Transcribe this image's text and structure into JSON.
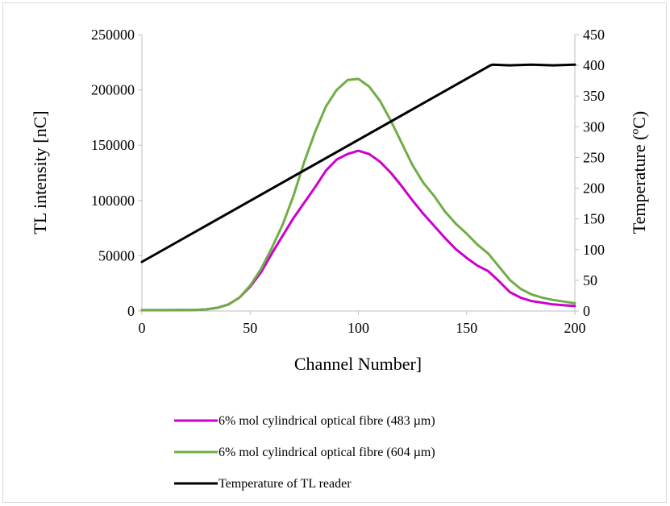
{
  "chart_data": {
    "type": "line",
    "title": "",
    "xlabel": "Channel Number]",
    "ylabel_left": "TL intensity [nC]",
    "ylabel_right": "Temperature  (ºC)",
    "xlim": [
      0,
      200
    ],
    "ylim_left": [
      0,
      250000
    ],
    "ylim_right": [
      0,
      450
    ],
    "x_ticks": [
      "0",
      "50",
      "100",
      "150",
      "200"
    ],
    "y_left_ticks": [
      "0",
      "50000",
      "100000",
      "150000",
      "200000",
      "250000"
    ],
    "y_right_ticks": [
      "0",
      "50",
      "100",
      "150",
      "200",
      "250",
      "300",
      "350",
      "400",
      "450"
    ],
    "grid": false,
    "legend_position": "bottom",
    "series": [
      {
        "name": "6% mol cylindrical optical fibre (483 µm)",
        "axis": "left",
        "color": "#cc00cc",
        "x": [
          0,
          10,
          20,
          25,
          30,
          35,
          40,
          45,
          50,
          55,
          60,
          65,
          70,
          75,
          80,
          85,
          90,
          95,
          100,
          105,
          110,
          115,
          120,
          125,
          130,
          135,
          140,
          145,
          150,
          155,
          160,
          165,
          170,
          175,
          180,
          185,
          190,
          195,
          200
        ],
        "values": [
          800,
          800,
          900,
          1000,
          1500,
          3000,
          6000,
          12000,
          22000,
          35000,
          52000,
          68000,
          84000,
          98000,
          112000,
          127000,
          137000,
          142000,
          145000,
          142000,
          135000,
          125000,
          113000,
          100000,
          88000,
          77000,
          66000,
          56000,
          48000,
          41000,
          36000,
          27000,
          17000,
          12000,
          9000,
          7500,
          6000,
          5200,
          4500
        ]
      },
      {
        "name": "6% mol cylindrical optical fibre (604 µm)",
        "axis": "left",
        "color": "#70ad47",
        "x": [
          0,
          10,
          20,
          25,
          30,
          35,
          40,
          45,
          50,
          55,
          60,
          65,
          70,
          75,
          80,
          85,
          90,
          95,
          100,
          105,
          110,
          115,
          120,
          125,
          130,
          135,
          140,
          145,
          150,
          155,
          160,
          165,
          170,
          175,
          180,
          185,
          190,
          195,
          200
        ],
        "values": [
          800,
          800,
          900,
          1000,
          1500,
          3000,
          6000,
          12000,
          23000,
          38000,
          57000,
          78000,
          104000,
          135000,
          162000,
          185000,
          200000,
          209000,
          210000,
          203000,
          190000,
          172000,
          152000,
          132000,
          116000,
          104000,
          90000,
          79000,
          70000,
          60000,
          52000,
          40000,
          28000,
          20000,
          15000,
          12000,
          10000,
          8500,
          7000
        ]
      },
      {
        "name": "Temperature of TL reader",
        "axis": "right",
        "color": "#000000",
        "x": [
          0,
          161,
          162,
          170,
          180,
          190,
          200
        ],
        "values": [
          80,
          400,
          401,
          400,
          401,
          400,
          401
        ]
      }
    ]
  }
}
